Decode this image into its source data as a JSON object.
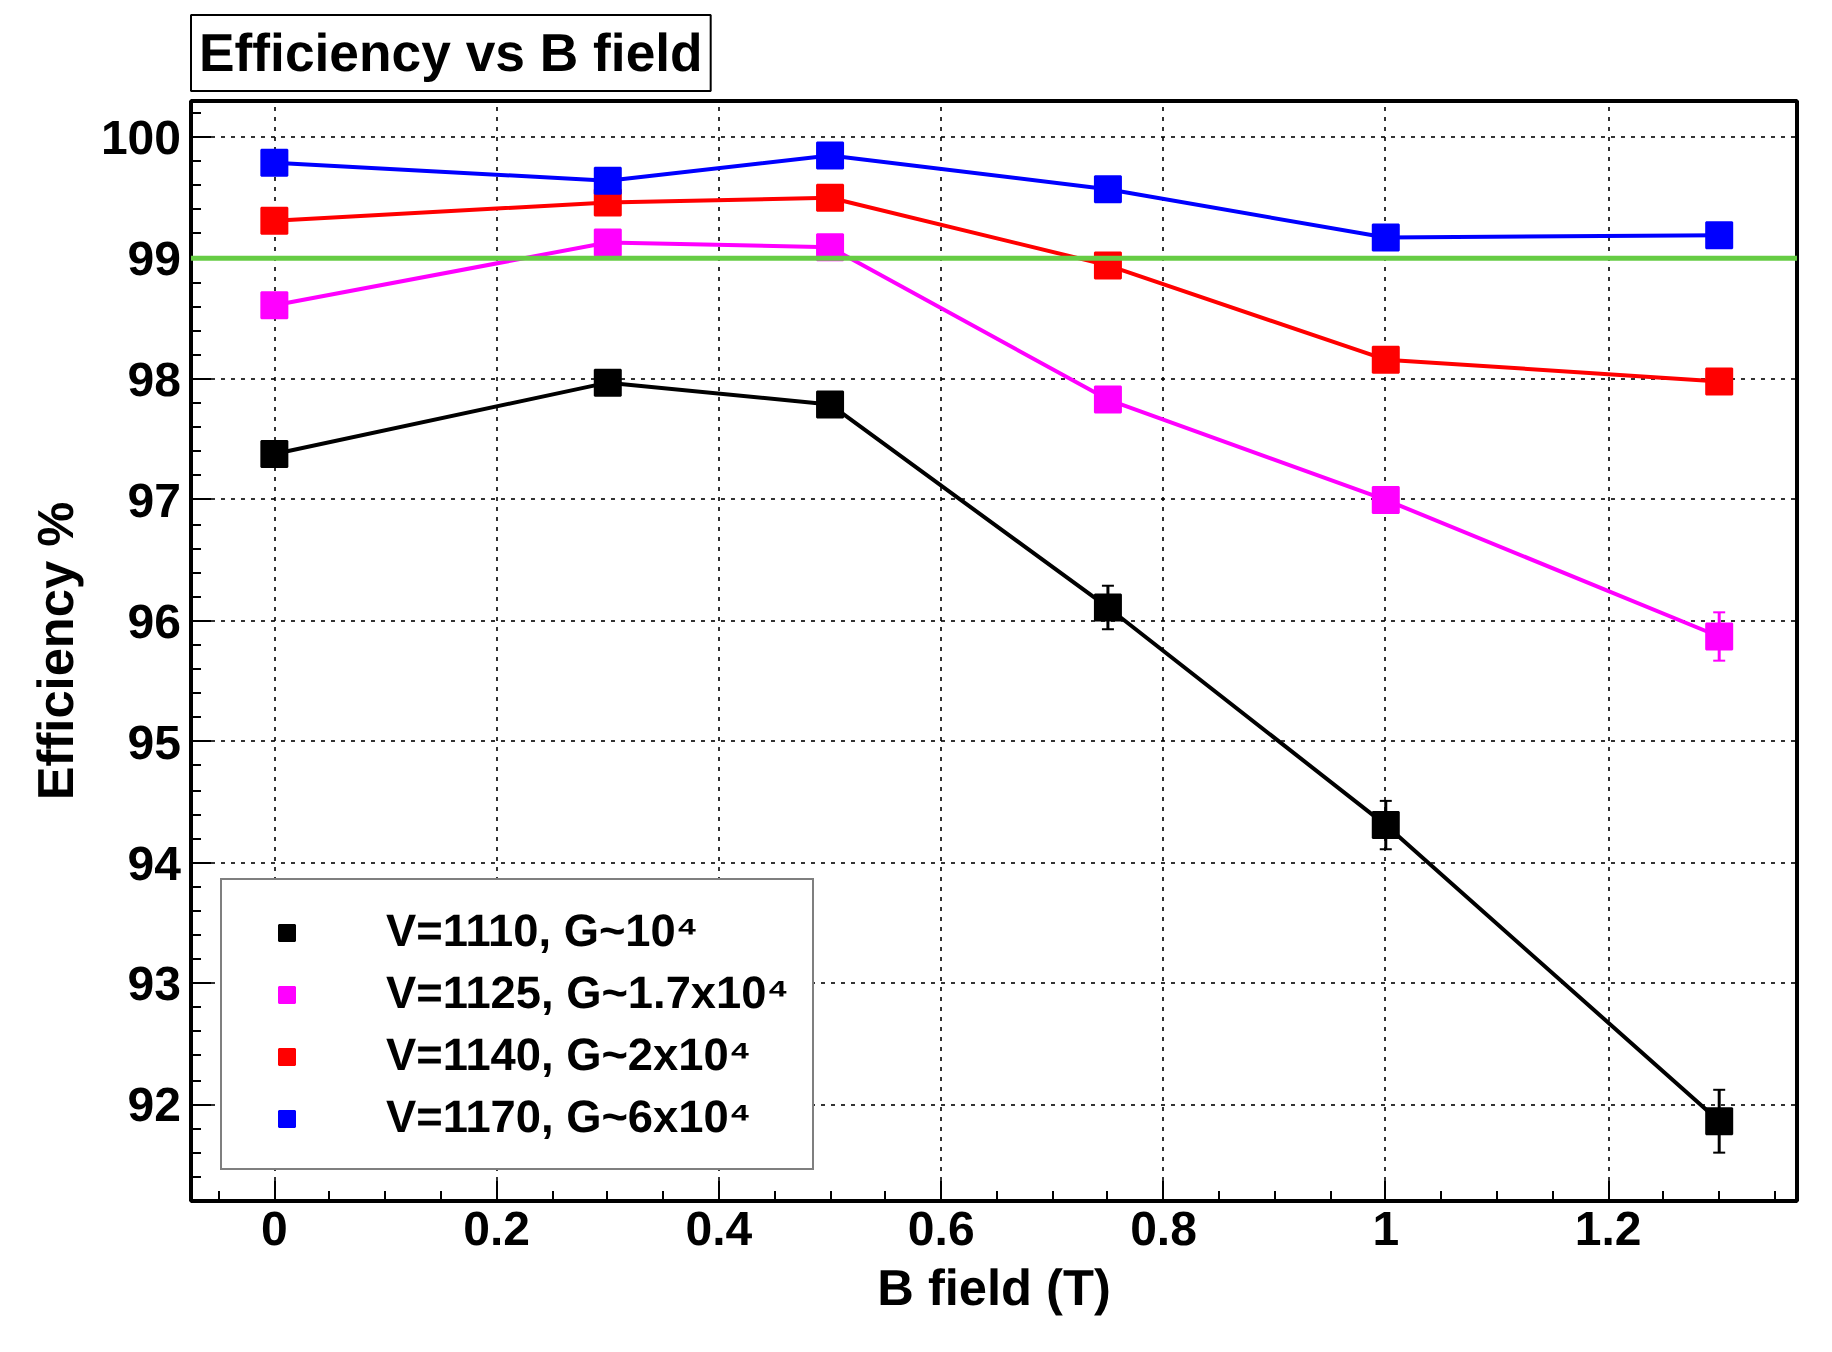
{
  "chart_data": {
    "type": "line",
    "title": "Efficiency vs B field",
    "xlabel": "B field (T)",
    "ylabel": "Efficiency %",
    "x": [
      0,
      0.3,
      0.5,
      0.75,
      1,
      1.3
    ],
    "series": [
      {
        "name": "V=1110, G~10⁴",
        "color": "#000000",
        "values": [
          97.38,
          97.97,
          97.79,
          96.11,
          94.31,
          91.86
        ],
        "errors": [
          0.05,
          0.07,
          0.06,
          0.18,
          0.2,
          0.26
        ]
      },
      {
        "name": "V=1125, G~1.7x10⁴",
        "color": "#ff00ff",
        "values": [
          98.61,
          99.13,
          99.09,
          97.83,
          97.0,
          95.87
        ],
        "errors": [
          0.05,
          0.05,
          0.05,
          0.08,
          0.06,
          0.2
        ]
      },
      {
        "name": "V=1140, G~2x10⁴",
        "color": "#ff0000",
        "values": [
          99.31,
          99.46,
          99.5,
          98.94,
          98.16,
          97.98
        ],
        "errors": [
          0.04,
          0.04,
          0.04,
          0.05,
          0.06,
          0.08
        ]
      },
      {
        "name": "V=1170, G~6x10⁴",
        "color": "#0000ff",
        "values": [
          99.79,
          99.64,
          99.85,
          99.57,
          99.17,
          99.19
        ],
        "errors": [
          0.03,
          0.03,
          0.03,
          0.04,
          0.04,
          0.04
        ]
      }
    ],
    "xlim": [
      -0.075,
      1.37
    ],
    "ylim": [
      91.2,
      100.3
    ],
    "xticks": [
      0,
      0.2,
      0.4,
      0.6,
      0.8,
      1,
      1.2
    ],
    "yticks": [
      92,
      93,
      94,
      95,
      96,
      97,
      98,
      99,
      100
    ],
    "ref_lines": [
      {
        "axis": "y",
        "value": 99,
        "color": "#66cc44"
      }
    ],
    "grid": true,
    "legend": "bottom left",
    "marker": "square",
    "line_style": "solid"
  }
}
